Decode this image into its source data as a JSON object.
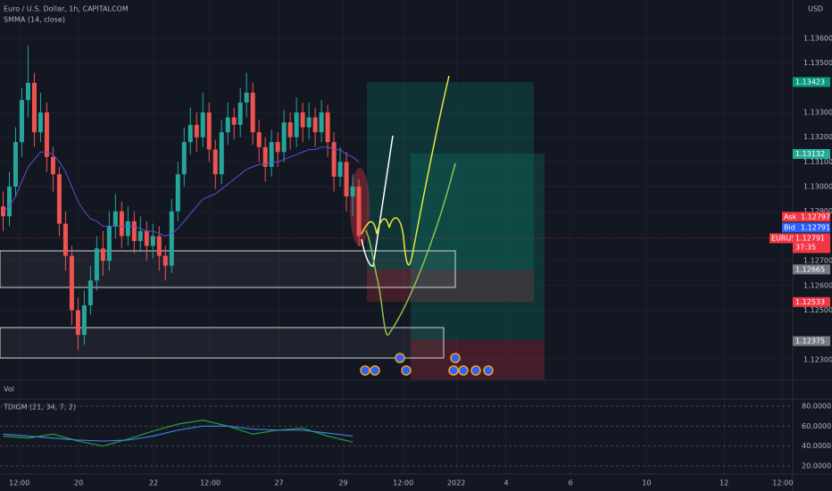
{
  "chart_data": [
    {
      "type": "candlestick",
      "title": "Euro / U.S. Dollar, 1h, CAPITALCOM",
      "currency": "USD",
      "volume_label": "Vol",
      "x": [
        0,
        1,
        2,
        3,
        4,
        5,
        6,
        7,
        8,
        9,
        10,
        11,
        12,
        13,
        14,
        15,
        16,
        17,
        18,
        19,
        20,
        21,
        22,
        23,
        24,
        25,
        26,
        27,
        28,
        29,
        30,
        31,
        32,
        33,
        34,
        35,
        36,
        37,
        38,
        39,
        40,
        41,
        42,
        43,
        44,
        45,
        46,
        47,
        48,
        49,
        50,
        51,
        52,
        53,
        54,
        55,
        56,
        57
      ],
      "open": [
        1.1292,
        1.1288,
        1.13,
        1.1318,
        1.1335,
        1.1342,
        1.1322,
        1.133,
        1.1312,
        1.1305,
        1.1285,
        1.1272,
        1.125,
        1.124,
        1.1252,
        1.1262,
        1.1275,
        1.127,
        1.1284,
        1.129,
        1.128,
        1.1286,
        1.1278,
        1.1282,
        1.1276,
        1.128,
        1.1272,
        1.1268,
        1.129,
        1.1305,
        1.1318,
        1.1325,
        1.132,
        1.133,
        1.1315,
        1.1305,
        1.1322,
        1.1328,
        1.1325,
        1.1334,
        1.1338,
        1.1322,
        1.1316,
        1.1308,
        1.1318,
        1.1314,
        1.1326,
        1.132,
        1.133,
        1.1324,
        1.1328,
        1.1322,
        1.133,
        1.1318,
        1.1304,
        1.131,
        1.1296,
        1.13
      ],
      "high": [
        1.1298,
        1.1306,
        1.1324,
        1.134,
        1.1357,
        1.1346,
        1.1338,
        1.1334,
        1.1316,
        1.1308,
        1.129,
        1.1276,
        1.1255,
        1.1258,
        1.1268,
        1.128,
        1.1282,
        1.129,
        1.1297,
        1.1294,
        1.1292,
        1.129,
        1.1288,
        1.1286,
        1.1285,
        1.1284,
        1.1276,
        1.1295,
        1.131,
        1.1324,
        1.1332,
        1.133,
        1.1338,
        1.1334,
        1.1319,
        1.1327,
        1.1334,
        1.1332,
        1.134,
        1.1346,
        1.1342,
        1.1327,
        1.132,
        1.1323,
        1.1322,
        1.1331,
        1.133,
        1.1336,
        1.1334,
        1.1334,
        1.1332,
        1.1335,
        1.1333,
        1.1322,
        1.1316,
        1.1314,
        1.1305,
        1.1303
      ],
      "low": [
        1.1282,
        1.1284,
        1.1296,
        1.1312,
        1.1328,
        1.1316,
        1.1318,
        1.1306,
        1.1298,
        1.128,
        1.1266,
        1.1244,
        1.1234,
        1.1236,
        1.1248,
        1.1258,
        1.1264,
        1.1266,
        1.1279,
        1.1275,
        1.1276,
        1.1273,
        1.1274,
        1.127,
        1.1271,
        1.1266,
        1.1262,
        1.1265,
        1.1286,
        1.13,
        1.1313,
        1.1314,
        1.1316,
        1.131,
        1.1299,
        1.1301,
        1.1317,
        1.1319,
        1.132,
        1.1328,
        1.1317,
        1.131,
        1.1302,
        1.1304,
        1.1308,
        1.131,
        1.1315,
        1.1316,
        1.1318,
        1.1319,
        1.1316,
        1.1318,
        1.1312,
        1.1298,
        1.13,
        1.129,
        1.1288,
        1.1276
      ],
      "close": [
        1.1288,
        1.13,
        1.1318,
        1.1335,
        1.1342,
        1.1322,
        1.133,
        1.1312,
        1.1305,
        1.1285,
        1.1272,
        1.125,
        1.124,
        1.1252,
        1.1262,
        1.1275,
        1.127,
        1.1284,
        1.129,
        1.128,
        1.1286,
        1.1278,
        1.1282,
        1.1276,
        1.128,
        1.1272,
        1.1268,
        1.129,
        1.1305,
        1.1318,
        1.1325,
        1.132,
        1.133,
        1.1315,
        1.1305,
        1.1322,
        1.1328,
        1.1325,
        1.1334,
        1.1338,
        1.1322,
        1.1316,
        1.1308,
        1.1318,
        1.1314,
        1.1326,
        1.132,
        1.133,
        1.1324,
        1.1328,
        1.1322,
        1.133,
        1.1318,
        1.1304,
        1.131,
        1.1296,
        1.13,
        1.128
      ],
      "up_color": "#26a69a",
      "down_color": "#ef5350",
      "series": [
        {
          "name": "SMMA (14, close)",
          "color": "#5b4fd1",
          "values": [
            1.129,
            1.1292,
            1.1296,
            1.1302,
            1.1308,
            1.1311,
            1.1314,
            1.1314,
            1.1313,
            1.131,
            1.1306,
            1.13,
            1.1294,
            1.129,
            1.1287,
            1.1286,
            1.1284,
            1.1284,
            1.1284,
            1.1284,
            1.1284,
            1.1284,
            1.1283,
            1.1282,
            1.1282,
            1.1281,
            1.128,
            1.1281,
            1.1283,
            1.1286,
            1.1289,
            1.1292,
            1.1295,
            1.1296,
            1.1297,
            1.1299,
            1.1301,
            1.1303,
            1.1305,
            1.1307,
            1.1308,
            1.1309,
            1.1309,
            1.131,
            1.131,
            1.1311,
            1.1312,
            1.1313,
            1.1314,
            1.1315,
            1.1315,
            1.1316,
            1.1316,
            1.1315,
            1.1315,
            1.1313,
            1.1312,
            1.131
          ]
        }
      ],
      "ylim": [
        1.1222,
        1.13755
      ],
      "yticks": [
        {
          "value": 1.136,
          "label": "1.13600"
        },
        {
          "value": 1.135,
          "label": "1.13500"
        },
        {
          "value": 1.133,
          "label": "1.13300"
        },
        {
          "value": 1.132,
          "label": "1.13200"
        },
        {
          "value": 1.131,
          "label": "1.13100"
        },
        {
          "value": 1.13,
          "label": "1.13000"
        },
        {
          "value": 1.129,
          "label": "1.12900"
        },
        {
          "value": 1.127,
          "label": "1.12700"
        },
        {
          "value": 1.126,
          "label": "1.12600"
        },
        {
          "value": 1.125,
          "label": "1.12500"
        },
        {
          "value": 1.123,
          "label": "1.12300"
        }
      ],
      "xlim": [
        -0.5,
        126.5
      ],
      "xticks": [
        {
          "value": 2.6,
          "label": "12:00"
        },
        {
          "value": 12.1,
          "label": "20"
        },
        {
          "value": 24.1,
          "label": "22"
        },
        {
          "value": 33.2,
          "label": "12:00"
        },
        {
          "value": 44.2,
          "label": "27"
        },
        {
          "value": 54.5,
          "label": "29"
        },
        {
          "value": 64.1,
          "label": "12:00"
        },
        {
          "value": 72.6,
          "label": "2022"
        },
        {
          "value": 80.6,
          "label": "4"
        },
        {
          "value": 90.9,
          "label": "6"
        },
        {
          "value": 103.1,
          "label": "10"
        },
        {
          "value": 115.5,
          "label": "12"
        },
        {
          "value": 124.9,
          "label": "12:00"
        }
      ],
      "price_labels": [
        {
          "label": "1.13423",
          "value": 1.13423,
          "color": "#089981"
        },
        {
          "label": "1.13132",
          "value": 1.13132,
          "color": "#22ab94"
        },
        {
          "name": "Ask",
          "label": "1.12797",
          "value": 1.12797,
          "color": "#f23645"
        },
        {
          "name": "Bid",
          "label": "1.12791",
          "value": 1.12791,
          "color": "#2962ff"
        },
        {
          "name": "EURUSD",
          "label": "1.12791",
          "value": 1.12791,
          "color": "#f23645",
          "countdown": "37:35"
        },
        {
          "label": "1.12665",
          "value": 1.12665,
          "color": "#787b86"
        },
        {
          "label": "1.12533",
          "value": 1.12533,
          "color": "#f23645"
        },
        {
          "label": "1.12375",
          "value": 1.12375,
          "color": "#787b86"
        }
      ]
    },
    {
      "type": "line",
      "title": "TDIGM (21, 34, 7, 2)",
      "x": [
        0,
        4,
        8,
        12,
        16,
        20,
        24,
        28,
        32,
        36,
        40,
        44,
        48,
        52,
        56
      ],
      "series": [
        {
          "color": "#2e9a3a",
          "values": [
            50,
            48,
            52,
            45,
            40,
            47,
            55,
            62,
            66,
            60,
            52,
            56,
            58,
            50,
            44
          ]
        },
        {
          "color": "#3d7fd9",
          "values": [
            52,
            50,
            48,
            46,
            45,
            46,
            50,
            56,
            60,
            60,
            57,
            56,
            56,
            53,
            50
          ]
        }
      ],
      "ylim": [
        12.8,
        87.2
      ],
      "yticks": [
        {
          "value": 80,
          "label": "80.0000"
        },
        {
          "value": 60,
          "label": "60.0000"
        },
        {
          "value": 40,
          "label": "40.0000"
        },
        {
          "value": 20,
          "label": "20.0000"
        }
      ]
    }
  ]
}
